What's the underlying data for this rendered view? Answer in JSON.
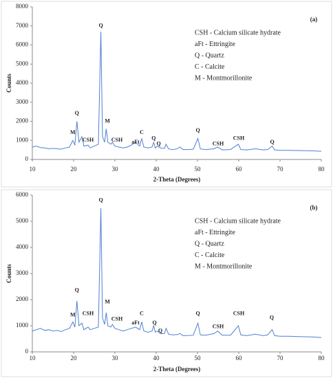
{
  "chart_data": [
    {
      "type": "line",
      "panel_label": "(a)",
      "y_label": "Counts",
      "x_label": "2-Theta (Degrees)",
      "color": "#4f7fd0",
      "legend_lines": [
        "CSH - Calcium silicate hydrate",
        "aFt - Ettringite",
        "Q - Quartz",
        "C - Calcite",
        "M - Montmorillonite"
      ],
      "xlim": [
        10,
        80
      ],
      "xticks": [
        10,
        20,
        30,
        40,
        50,
        60,
        70,
        80
      ],
      "ylim": [
        0,
        8000
      ],
      "yticks": [
        0,
        1000,
        2000,
        3000,
        4000,
        5000,
        6000,
        7000,
        8000
      ],
      "x": [
        10,
        11,
        12,
        13,
        14,
        15,
        16,
        17,
        18,
        19,
        19.8,
        20.3,
        20.8,
        21.3,
        22,
        22.5,
        23.5,
        24,
        25,
        26,
        26.6,
        27,
        27.5,
        27.9,
        28.3,
        29,
        29.4,
        30,
        31,
        32,
        33,
        34,
        35,
        35.5,
        36,
        36.5,
        37,
        38,
        39,
        39.4,
        39.8,
        40.3,
        41,
        42,
        42.4,
        43,
        44,
        45,
        45.8,
        46.5,
        48,
        49,
        50.1,
        50.7,
        52,
        54,
        54.9,
        56,
        58,
        59.9,
        60.5,
        62,
        64,
        66,
        67,
        68.1,
        68.7,
        70,
        72,
        74,
        76,
        78,
        80
      ],
      "values": [
        650,
        700,
        620,
        600,
        560,
        580,
        560,
        540,
        600,
        650,
        1000,
        750,
        2000,
        900,
        1200,
        700,
        750,
        600,
        700,
        800,
        6700,
        1200,
        900,
        1600,
        900,
        800,
        900,
        700,
        650,
        600,
        650,
        750,
        900,
        800,
        700,
        1100,
        650,
        600,
        650,
        900,
        600,
        700,
        600,
        580,
        800,
        550,
        520,
        550,
        650,
        520,
        520,
        540,
        1100,
        550,
        520,
        560,
        650,
        500,
        520,
        800,
        520,
        500,
        560,
        500,
        520,
        700,
        500,
        480,
        480,
        470,
        460,
        450,
        430
      ],
      "annotations": [
        {
          "text": "M",
          "x": 19.8,
          "y": 1400
        },
        {
          "text": "Q",
          "x": 20.8,
          "y": 2400
        },
        {
          "text": "CSH",
          "x": 23.5,
          "y": 1000
        },
        {
          "text": "Q",
          "x": 26.6,
          "y": 7000
        },
        {
          "text": "M",
          "x": 28.2,
          "y": 2000
        },
        {
          "text": "CSH",
          "x": 30.5,
          "y": 1000
        },
        {
          "text": "aFt",
          "x": 35,
          "y": 900
        },
        {
          "text": "C",
          "x": 36.5,
          "y": 1400
        },
        {
          "text": "Q",
          "x": 39.4,
          "y": 1100
        },
        {
          "text": "Q",
          "x": 40.6,
          "y": 800
        },
        {
          "text": "Q",
          "x": 50.1,
          "y": 1500
        },
        {
          "text": "CSH",
          "x": 55,
          "y": 800
        },
        {
          "text": "CSH",
          "x": 60,
          "y": 1100
        },
        {
          "text": "Q",
          "x": 68.1,
          "y": 900
        }
      ]
    },
    {
      "type": "line",
      "panel_label": "(b)",
      "y_label": "Counts",
      "x_label": "2-Theta (Degrees)",
      "color": "#4f7fd0",
      "legend_lines": [
        "CSH - Calcium silicate hydrate",
        "aFt - Ettringite",
        "Q - Quartz",
        "C - Calcite",
        "M - Montmorillonite"
      ],
      "xlim": [
        10,
        80
      ],
      "xticks": [
        10,
        20,
        30,
        40,
        50,
        60,
        70,
        80
      ],
      "ylim": [
        0,
        6000
      ],
      "yticks": [
        0,
        1000,
        2000,
        3000,
        4000,
        5000,
        6000
      ],
      "x": [
        10,
        11,
        12,
        13,
        14,
        15,
        16,
        17,
        18,
        19,
        19.8,
        20.3,
        20.8,
        21.3,
        22,
        22.5,
        23.5,
        24,
        25,
        26,
        26.6,
        27,
        27.5,
        27.9,
        28.3,
        29,
        29.4,
        30,
        31,
        32,
        33,
        34,
        35,
        35.5,
        36,
        36.5,
        37,
        38,
        39,
        39.4,
        39.8,
        40.3,
        41,
        42,
        42.4,
        43,
        44,
        45,
        45.8,
        46.5,
        48,
        49,
        50.1,
        50.7,
        52,
        54,
        54.9,
        56,
        58,
        59.9,
        60.5,
        62,
        64,
        66,
        67,
        68.1,
        68.7,
        70,
        72,
        74,
        76,
        78,
        80
      ],
      "values": [
        800,
        850,
        900,
        820,
        850,
        800,
        820,
        780,
        850,
        900,
        1150,
        950,
        1950,
        1000,
        1100,
        850,
        950,
        850,
        900,
        950,
        5500,
        1300,
        1050,
        1500,
        1000,
        950,
        1050,
        900,
        850,
        800,
        850,
        900,
        950,
        900,
        850,
        1150,
        800,
        750,
        800,
        1000,
        750,
        800,
        700,
        700,
        900,
        680,
        650,
        660,
        700,
        620,
        630,
        640,
        1100,
        650,
        640,
        700,
        800,
        640,
        640,
        1000,
        650,
        620,
        680,
        620,
        650,
        850,
        620,
        600,
        600,
        590,
        580,
        570,
        550
      ],
      "annotations": [
        {
          "text": "M",
          "x": 19.8,
          "y": 1400
        },
        {
          "text": "Q",
          "x": 20.8,
          "y": 2350
        },
        {
          "text": "CSH",
          "x": 23.5,
          "y": 1450
        },
        {
          "text": "Q",
          "x": 26.6,
          "y": 5800
        },
        {
          "text": "M",
          "x": 28.2,
          "y": 1900
        },
        {
          "text": "CSH",
          "x": 30.5,
          "y": 1250
        },
        {
          "text": "aFt",
          "x": 35,
          "y": 1100
        },
        {
          "text": "C",
          "x": 36.5,
          "y": 1450
        },
        {
          "text": "Q",
          "x": 39.6,
          "y": 1100
        },
        {
          "text": "Q",
          "x": 41,
          "y": 800
        },
        {
          "text": "Q",
          "x": 50.1,
          "y": 1450
        },
        {
          "text": "CSH",
          "x": 55,
          "y": 950
        },
        {
          "text": "CSH",
          "x": 60,
          "y": 1450
        },
        {
          "text": "Q",
          "x": 68,
          "y": 1300
        }
      ]
    }
  ]
}
